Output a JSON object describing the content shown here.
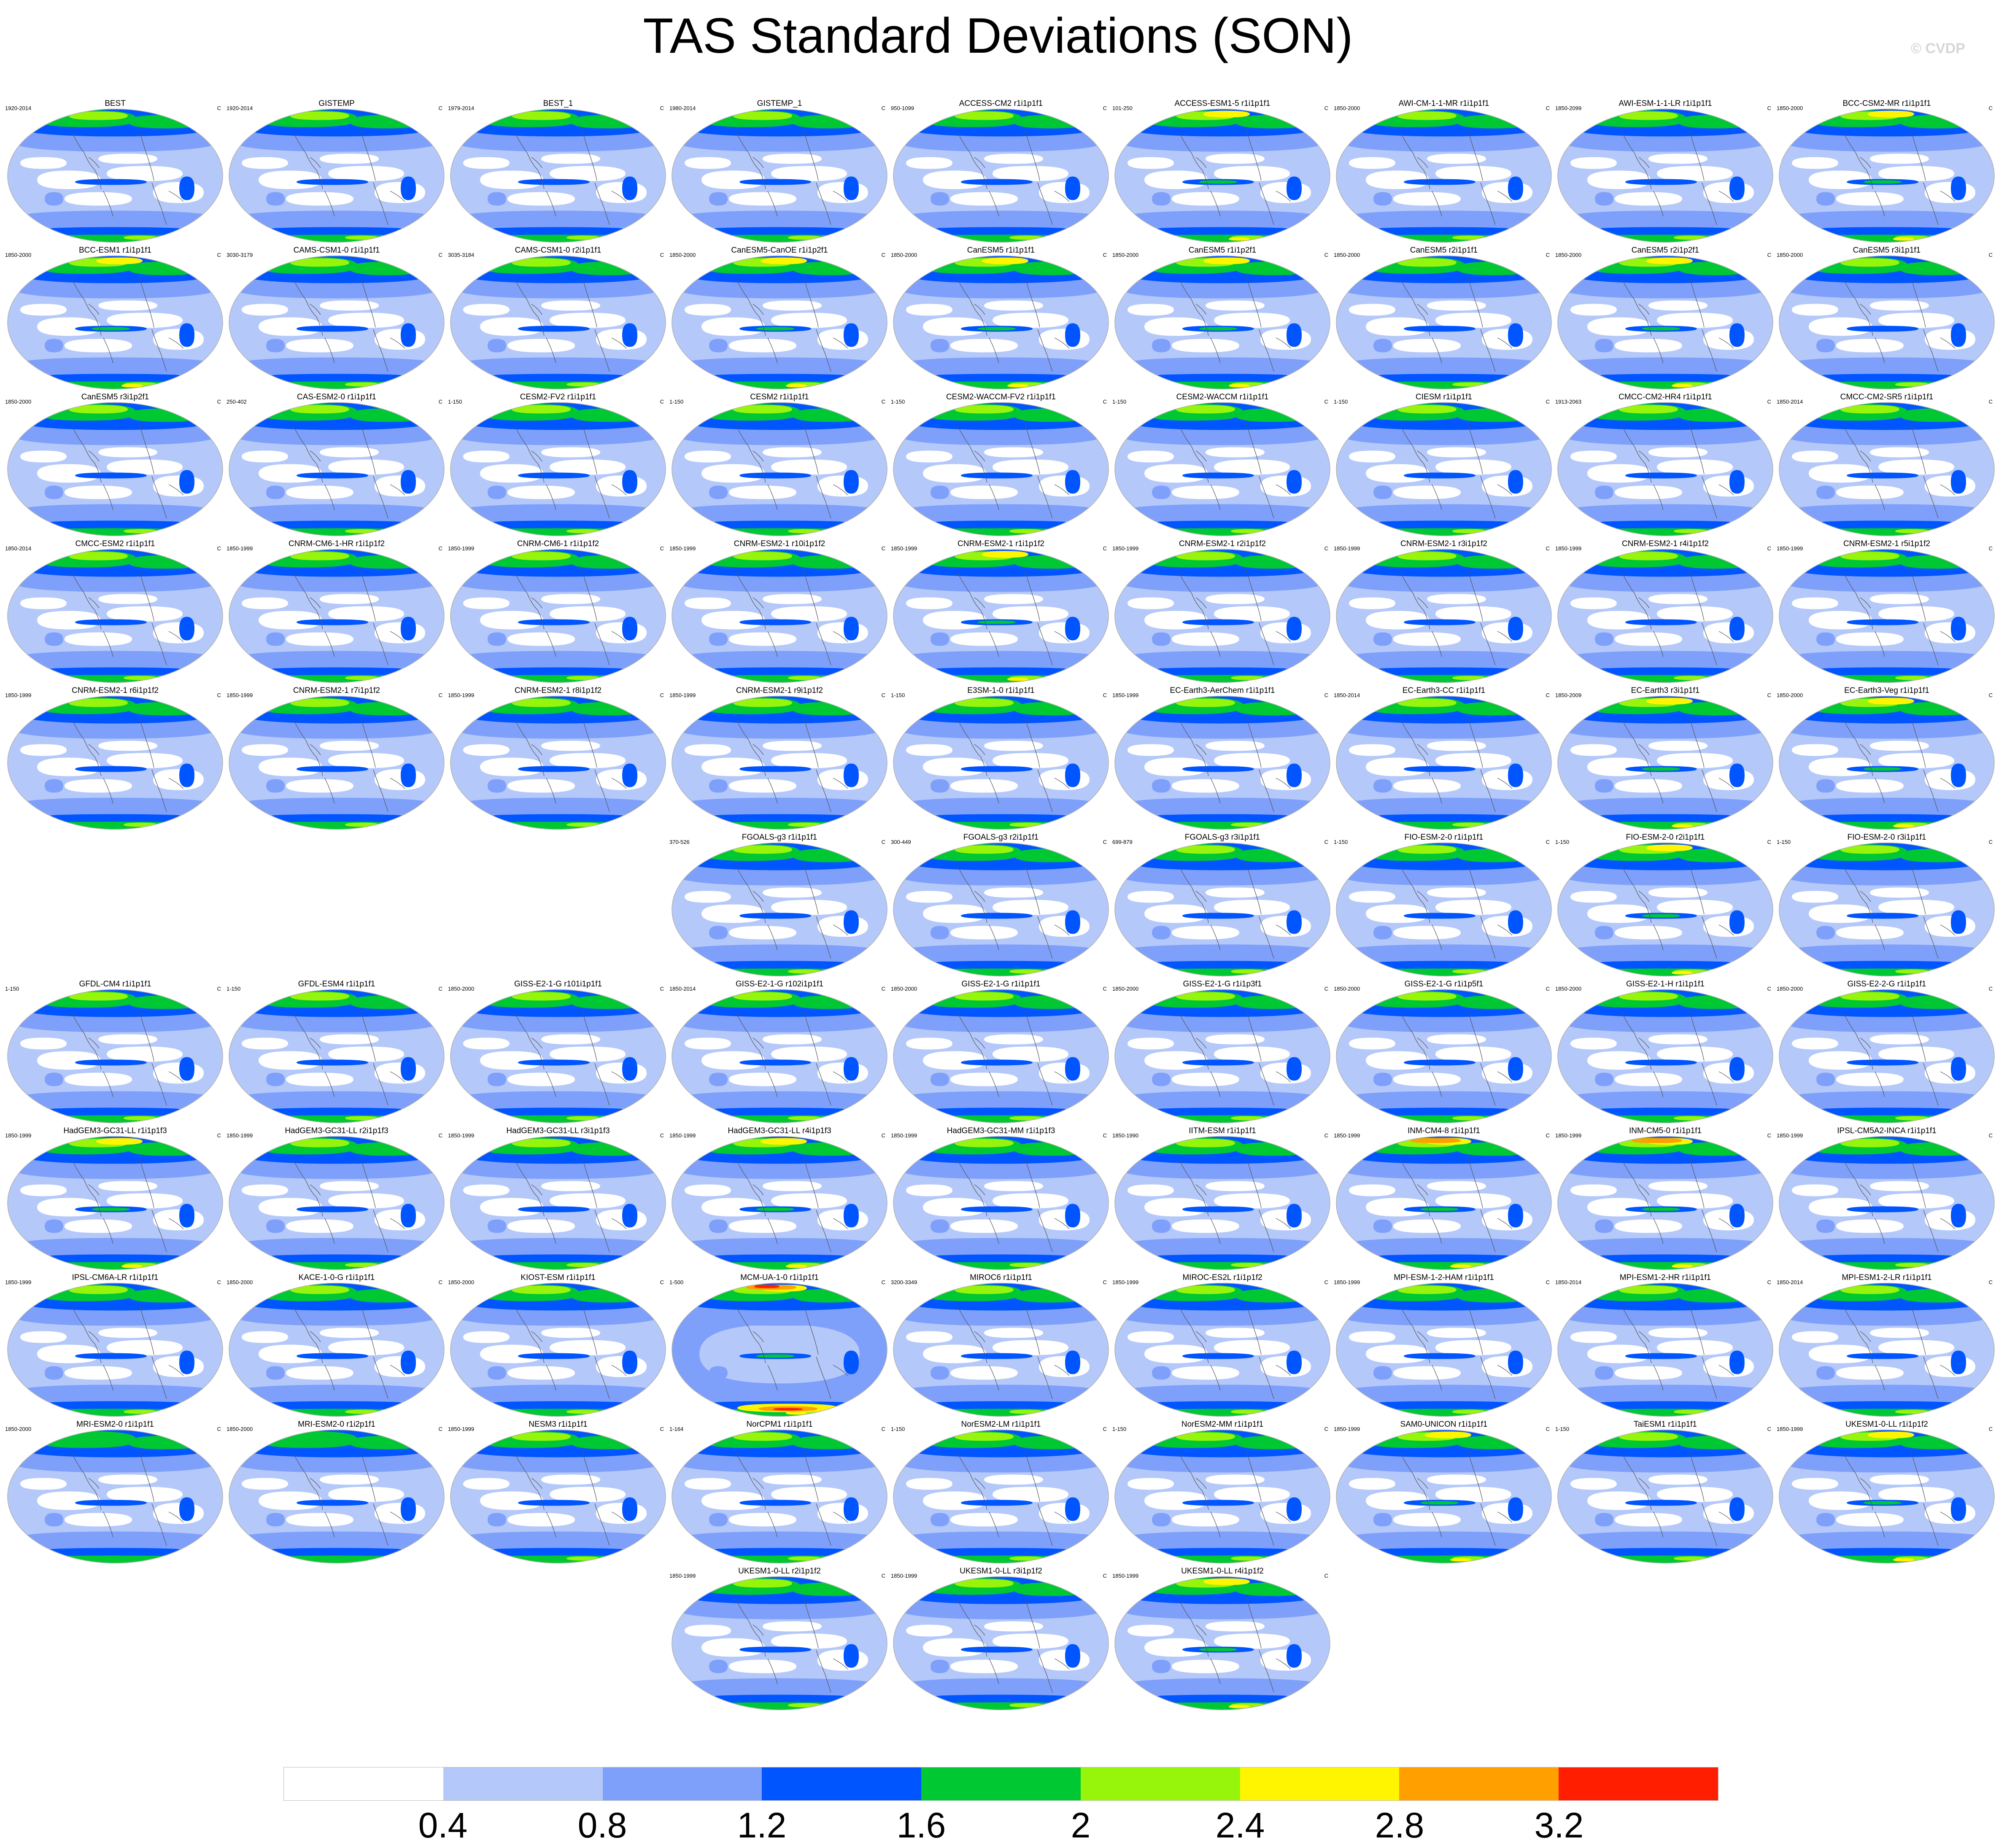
{
  "title": "TAS Standard Deviations (SON)",
  "credit": "© CVDP",
  "colorbar": {
    "colors": [
      "#ffffff",
      "#b4c8fa",
      "#7ea0fb",
      "#0055ff",
      "#00c832",
      "#96f50a",
      "#fff500",
      "#ffa000",
      "#ff1e00"
    ],
    "ticks": [
      "0.4",
      "0.8",
      "1.2",
      "1.6",
      "2",
      "2.4",
      "2.8",
      "3.2"
    ]
  },
  "map_colors": {
    "ocean_base": "#b4c8fa",
    "white": "#ffffff",
    "light_blue": "#b4c8fa",
    "mid_blue": "#7ea0fb",
    "blue": "#0055ff",
    "green": "#00c832",
    "yellowgreen": "#96f50a",
    "yellow": "#fff500",
    "orange": "#ffa000",
    "red": "#ff1e00",
    "coast": "#555555"
  },
  "panels": [
    {
      "title": "BEST",
      "years": "1920-2014",
      "unit": "C",
      "row": 0,
      "col": 0,
      "level": 1
    },
    {
      "title": "GISTEMP",
      "years": "1920-2014",
      "unit": "C",
      "row": 0,
      "col": 1,
      "level": 1
    },
    {
      "title": "BEST_1",
      "years": "1979-2014",
      "unit": "C",
      "row": 0,
      "col": 2,
      "level": 1
    },
    {
      "title": "GISTEMP_1",
      "years": "1980-2014",
      "unit": "C",
      "row": 0,
      "col": 3,
      "level": 1
    },
    {
      "title": "ACCESS-CM2 r1i1p1f1",
      "years": "950-1099",
      "unit": "C",
      "row": 0,
      "col": 4,
      "level": 1
    },
    {
      "title": "ACCESS-ESM1-5 r1i1p1f1",
      "years": "101-250",
      "unit": "C",
      "row": 0,
      "col": 5,
      "level": 2
    },
    {
      "title": "AWI-CM-1-1-MR r1i1p1f1",
      "years": "1850-2000",
      "unit": "C",
      "row": 0,
      "col": 6,
      "level": 1
    },
    {
      "title": "AWI-ESM-1-1-LR r1i1p1f1",
      "years": "1850-2099",
      "unit": "C",
      "row": 0,
      "col": 7,
      "level": 1
    },
    {
      "title": "BCC-CSM2-MR r1i1p1f1",
      "years": "1850-2000",
      "unit": "C",
      "row": 0,
      "col": 8,
      "level": 2
    },
    {
      "title": "BCC-ESM1 r1i1p1f1",
      "years": "1850-2000",
      "unit": "C",
      "row": 1,
      "col": 0,
      "level": 2
    },
    {
      "title": "CAMS-CSM1-0 r1i1p1f1",
      "years": "3030-3179",
      "unit": "C",
      "row": 1,
      "col": 1,
      "level": 1
    },
    {
      "title": "CAMS-CSM1-0 r2i1p1f1",
      "years": "3035-3184",
      "unit": "C",
      "row": 1,
      "col": 2,
      "level": 1
    },
    {
      "title": "CanESM5-CanOE r1i1p2f1",
      "years": "1850-2000",
      "unit": "C",
      "row": 1,
      "col": 3,
      "level": 2
    },
    {
      "title": "CanESM5 r1i1p1f1",
      "years": "1850-2000",
      "unit": "C",
      "row": 1,
      "col": 4,
      "level": 2
    },
    {
      "title": "CanESM5 r1i1p2f1",
      "years": "1850-2000",
      "unit": "C",
      "row": 1,
      "col": 5,
      "level": 2
    },
    {
      "title": "CanESM5 r2i1p1f1",
      "years": "1850-2000",
      "unit": "C",
      "row": 1,
      "col": 6,
      "level": 1
    },
    {
      "title": "CanESM5 r2i1p2f1",
      "years": "1850-2000",
      "unit": "C",
      "row": 1,
      "col": 7,
      "level": 2
    },
    {
      "title": "CanESM5 r3i1p1f1",
      "years": "1850-2000",
      "unit": "C",
      "row": 1,
      "col": 8,
      "level": 1
    },
    {
      "title": "CanESM5 r3i1p2f1",
      "years": "1850-2000",
      "unit": "C",
      "row": 2,
      "col": 0,
      "level": 1
    },
    {
      "title": "CAS-ESM2-0 r1i1p1f1",
      "years": "250-402",
      "unit": "C",
      "row": 2,
      "col": 1,
      "level": 1
    },
    {
      "title": "CESM2-FV2 r1i1p1f1",
      "years": "1-150",
      "unit": "C",
      "row": 2,
      "col": 2,
      "level": 1
    },
    {
      "title": "CESM2 r1i1p1f1",
      "years": "1-150",
      "unit": "C",
      "row": 2,
      "col": 3,
      "level": 1
    },
    {
      "title": "CESM2-WACCM-FV2 r1i1p1f1",
      "years": "1-150",
      "unit": "C",
      "row": 2,
      "col": 4,
      "level": 1
    },
    {
      "title": "CESM2-WACCM r1i1p1f1",
      "years": "1-150",
      "unit": "C",
      "row": 2,
      "col": 5,
      "level": 1
    },
    {
      "title": "CIESM r1i1p1f1",
      "years": "1-150",
      "unit": "C",
      "row": 2,
      "col": 6,
      "level": 1
    },
    {
      "title": "CMCC-CM2-HR4 r1i1p1f1",
      "years": "1913-2063",
      "unit": "C",
      "row": 2,
      "col": 7,
      "level": 1
    },
    {
      "title": "CMCC-CM2-SR5 r1i1p1f1",
      "years": "1850-2014",
      "unit": "C",
      "row": 2,
      "col": 8,
      "level": 1
    },
    {
      "title": "CMCC-ESM2 r1i1p1f1",
      "years": "1850-2014",
      "unit": "C",
      "row": 3,
      "col": 0,
      "level": 1
    },
    {
      "title": "CNRM-CM6-1-HR r1i1p1f2",
      "years": "1850-1999",
      "unit": "C",
      "row": 3,
      "col": 1,
      "level": 1
    },
    {
      "title": "CNRM-CM6-1 r1i1p1f2",
      "years": "1850-1999",
      "unit": "C",
      "row": 3,
      "col": 2,
      "level": 1
    },
    {
      "title": "CNRM-ESM2-1 r10i1p1f2",
      "years": "1850-1999",
      "unit": "C",
      "row": 3,
      "col": 3,
      "level": 1
    },
    {
      "title": "CNRM-ESM2-1 r1i1p1f2",
      "years": "1850-1999",
      "unit": "C",
      "row": 3,
      "col": 4,
      "level": 2
    },
    {
      "title": "CNRM-ESM2-1 r2i1p1f2",
      "years": "1850-1999",
      "unit": "C",
      "row": 3,
      "col": 5,
      "level": 1
    },
    {
      "title": "CNRM-ESM2-1 r3i1p1f2",
      "years": "1850-1999",
      "unit": "C",
      "row": 3,
      "col": 6,
      "level": 1
    },
    {
      "title": "CNRM-ESM2-1 r4i1p1f2",
      "years": "1850-1999",
      "unit": "C",
      "row": 3,
      "col": 7,
      "level": 1
    },
    {
      "title": "CNRM-ESM2-1 r5i1p1f2",
      "years": "1850-1999",
      "unit": "C",
      "row": 3,
      "col": 8,
      "level": 1
    },
    {
      "title": "CNRM-ESM2-1 r6i1p1f2",
      "years": "1850-1999",
      "unit": "C",
      "row": 4,
      "col": 0,
      "level": 1
    },
    {
      "title": "CNRM-ESM2-1 r7i1p1f2",
      "years": "1850-1999",
      "unit": "C",
      "row": 4,
      "col": 1,
      "level": 1
    },
    {
      "title": "CNRM-ESM2-1 r8i1p1f2",
      "years": "1850-1999",
      "unit": "C",
      "row": 4,
      "col": 2,
      "level": 1
    },
    {
      "title": "CNRM-ESM2-1 r9i1p1f2",
      "years": "1850-1999",
      "unit": "C",
      "row": 4,
      "col": 3,
      "level": 1
    },
    {
      "title": "E3SM-1-0 r1i1p1f1",
      "years": "1-150",
      "unit": "C",
      "row": 4,
      "col": 4,
      "level": 1
    },
    {
      "title": "EC-Earth3-AerChem r1i1p1f1",
      "years": "1850-1999",
      "unit": "C",
      "row": 4,
      "col": 5,
      "level": 1
    },
    {
      "title": "EC-Earth3-CC r1i1p1f1",
      "years": "1850-2014",
      "unit": "C",
      "row": 4,
      "col": 6,
      "level": 1
    },
    {
      "title": "EC-Earth3 r3i1p1f1",
      "years": "1850-2009",
      "unit": "C",
      "row": 4,
      "col": 7,
      "level": 2
    },
    {
      "title": "EC-Earth3-Veg r1i1p1f1",
      "years": "1850-2000",
      "unit": "C",
      "row": 4,
      "col": 8,
      "level": 2
    },
    {
      "title": "FGOALS-g3 r1i1p1f1",
      "years": "370-526",
      "unit": "C",
      "row": 5,
      "col": 3,
      "level": 1
    },
    {
      "title": "FGOALS-g3 r2i1p1f1",
      "years": "300-449",
      "unit": "C",
      "row": 5,
      "col": 4,
      "level": 1
    },
    {
      "title": "FGOALS-g3 r3i1p1f1",
      "years": "699-879",
      "unit": "C",
      "row": 5,
      "col": 5,
      "level": 1
    },
    {
      "title": "FIO-ESM-2-0 r1i1p1f1",
      "years": "1-150",
      "unit": "C",
      "row": 5,
      "col": 6,
      "level": 1
    },
    {
      "title": "FIO-ESM-2-0 r2i1p1f1",
      "years": "1-150",
      "unit": "C",
      "row": 5,
      "col": 7,
      "level": 2
    },
    {
      "title": "FIO-ESM-2-0 r3i1p1f1",
      "years": "1-150",
      "unit": "C",
      "row": 5,
      "col": 8,
      "level": 1
    },
    {
      "title": "GFDL-CM4 r1i1p1f1",
      "years": "1-150",
      "unit": "C",
      "row": 6,
      "col": 0,
      "level": 1
    },
    {
      "title": "GFDL-ESM4 r1i1p1f1",
      "years": "1-150",
      "unit": "C",
      "row": 6,
      "col": 1,
      "level": 1
    },
    {
      "title": "GISS-E2-1-G r101i1p1f1",
      "years": "1850-2000",
      "unit": "C",
      "row": 6,
      "col": 2,
      "level": 1
    },
    {
      "title": "GISS-E2-1-G r102i1p1f1",
      "years": "1850-2014",
      "unit": "C",
      "row": 6,
      "col": 3,
      "level": 1
    },
    {
      "title": "GISS-E2-1-G r1i1p1f1",
      "years": "1850-2000",
      "unit": "C",
      "row": 6,
      "col": 4,
      "level": 1
    },
    {
      "title": "GISS-E2-1-G r1i1p3f1",
      "years": "1850-2000",
      "unit": "C",
      "row": 6,
      "col": 5,
      "level": 1
    },
    {
      "title": "GISS-E2-1-G r1i1p5f1",
      "years": "1850-2000",
      "unit": "C",
      "row": 6,
      "col": 6,
      "level": 1
    },
    {
      "title": "GISS-E2-1-H r1i1p1f1",
      "years": "1850-2000",
      "unit": "C",
      "row": 6,
      "col": 7,
      "level": 1
    },
    {
      "title": "GISS-E2-2-G r1i1p1f1",
      "years": "1850-2000",
      "unit": "C",
      "row": 6,
      "col": 8,
      "level": 1
    },
    {
      "title": "HadGEM3-GC31-LL r1i1p1f3",
      "years": "1850-1999",
      "unit": "C",
      "row": 7,
      "col": 0,
      "level": 2
    },
    {
      "title": "HadGEM3-GC31-LL r2i1p1f3",
      "years": "1850-1999",
      "unit": "C",
      "row": 7,
      "col": 1,
      "level": 1
    },
    {
      "title": "HadGEM3-GC31-LL r3i1p1f3",
      "years": "1850-1999",
      "unit": "C",
      "row": 7,
      "col": 2,
      "level": 1
    },
    {
      "title": "HadGEM3-GC31-LL r4i1p1f3",
      "years": "1850-1999",
      "unit": "C",
      "row": 7,
      "col": 3,
      "level": 2
    },
    {
      "title": "HadGEM3-GC31-MM r1i1p1f3",
      "years": "1850-1999",
      "unit": "C",
      "row": 7,
      "col": 4,
      "level": 1
    },
    {
      "title": "IITM-ESM r1i1p1f1",
      "years": "1850-1990",
      "unit": "C",
      "row": 7,
      "col": 5,
      "level": 1
    },
    {
      "title": "INM-CM4-8 r1i1p1f1",
      "years": "1850-1999",
      "unit": "C",
      "row": 7,
      "col": 6,
      "level": 3
    },
    {
      "title": "INM-CM5-0 r1i1p1f1",
      "years": "1850-1999",
      "unit": "C",
      "row": 7,
      "col": 7,
      "level": 3
    },
    {
      "title": "IPSL-CM5A2-INCA r1i1p1f1",
      "years": "1850-1999",
      "unit": "C",
      "row": 7,
      "col": 8,
      "level": 1
    },
    {
      "title": "IPSL-CM6A-LR r1i1p1f1",
      "years": "1850-1999",
      "unit": "C",
      "row": 8,
      "col": 0,
      "level": 1
    },
    {
      "title": "KACE-1-0-G r1i1p1f1",
      "years": "1850-2000",
      "unit": "C",
      "row": 8,
      "col": 1,
      "level": 1
    },
    {
      "title": "KIOST-ESM r1i1p1f1",
      "years": "1850-2000",
      "unit": "C",
      "row": 8,
      "col": 2,
      "level": 1
    },
    {
      "title": "MCM-UA-1-0 r1i1p1f1",
      "years": "1-500",
      "unit": "C",
      "row": 8,
      "col": 3,
      "level": 4
    },
    {
      "title": "MIROC6 r1i1p1f1",
      "years": "3200-3349",
      "unit": "C",
      "row": 8,
      "col": 4,
      "level": 1
    },
    {
      "title": "MIROC-ES2L r1i1p1f2",
      "years": "1850-1999",
      "unit": "C",
      "row": 8,
      "col": 5,
      "level": 1
    },
    {
      "title": "MPI-ESM-1-2-HAM r1i1p1f1",
      "years": "1850-1999",
      "unit": "C",
      "row": 8,
      "col": 6,
      "level": 1
    },
    {
      "title": "MPI-ESM1-2-HR r1i1p1f1",
      "years": "1850-2014",
      "unit": "C",
      "row": 8,
      "col": 7,
      "level": 1
    },
    {
      "title": "MPI-ESM1-2-LR r1i1p1f1",
      "years": "1850-2014",
      "unit": "C",
      "row": 8,
      "col": 8,
      "level": 1
    },
    {
      "title": "MRI-ESM2-0 r1i1p1f1",
      "years": "1850-2000",
      "unit": "C",
      "row": 9,
      "col": 0,
      "level": 0
    },
    {
      "title": "MRI-ESM2-0 r1i2p1f1",
      "years": "1850-2000",
      "unit": "C",
      "row": 9,
      "col": 1,
      "level": 0
    },
    {
      "title": "NESM3 r1i1p1f1",
      "years": "1850-1999",
      "unit": "C",
      "row": 9,
      "col": 2,
      "level": 1
    },
    {
      "title": "NorCPM1 r1i1p1f1",
      "years": "1-164",
      "unit": "C",
      "row": 9,
      "col": 3,
      "level": 1
    },
    {
      "title": "NorESM2-LM r1i1p1f1",
      "years": "1-150",
      "unit": "C",
      "row": 9,
      "col": 4,
      "level": 1
    },
    {
      "title": "NorESM2-MM r1i1p1f1",
      "years": "1-150",
      "unit": "C",
      "row": 9,
      "col": 5,
      "level": 1
    },
    {
      "title": "SAM0-UNICON r1i1p1f1",
      "years": "1850-1999",
      "unit": "C",
      "row": 9,
      "col": 6,
      "level": 2
    },
    {
      "title": "TaiESM1 r1i1p1f1",
      "years": "1-150",
      "unit": "C",
      "row": 9,
      "col": 7,
      "level": 1
    },
    {
      "title": "UKESM1-0-LL r1i1p1f2",
      "years": "1850-1999",
      "unit": "C",
      "row": 9,
      "col": 8,
      "level": 2
    },
    {
      "title": "UKESM1-0-LL r2i1p1f2",
      "years": "1850-1999",
      "unit": "C",
      "row": 10,
      "col": 3,
      "level": 1
    },
    {
      "title": "UKESM1-0-LL r3i1p1f2",
      "years": "1850-1999",
      "unit": "C",
      "row": 10,
      "col": 4,
      "level": 1
    },
    {
      "title": "UKESM1-0-LL r4i1p1f2",
      "years": "1850-1999",
      "unit": "C",
      "row": 10,
      "col": 5,
      "level": 2
    }
  ]
}
